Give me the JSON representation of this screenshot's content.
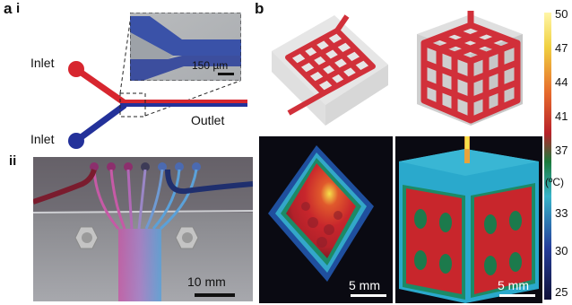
{
  "panel_a": {
    "letter": "a",
    "sub_i": "i",
    "sub_ii": "ii",
    "inlet_top": "Inlet",
    "inlet_bottom": "Inlet",
    "outlet": "Outlet",
    "inset_scale": "150 µm",
    "photo_scale": "10 mm"
  },
  "panel_b": {
    "letter": "b",
    "scale_left": "5 mm",
    "scale_right": "5 mm",
    "colorbar_unit": "(ºC)",
    "colorbar_ticks": [
      "50",
      "47",
      "44",
      "41",
      "37",
      "33",
      "30",
      "25"
    ]
  },
  "colors": {
    "red_channel": "#d7262f",
    "blue_channel": "#23319a",
    "model_red": "#d1303a"
  }
}
